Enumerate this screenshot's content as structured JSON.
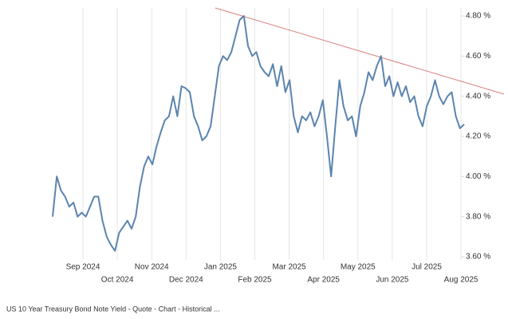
{
  "chart_data": {
    "type": "line",
    "caption": "US 10 Year Treasury Bond Note Yield - Quote - Chart - Historical ...",
    "month_labels": [
      "Sep 2024",
      "Oct 2024",
      "Nov 2024",
      "Dec 2024",
      "Jan 2025",
      "Feb 2025",
      "Mar 2025",
      "Apr 2025",
      "May 2025",
      "Jun 2025",
      "Jul 2025",
      "Aug 2025"
    ],
    "series": [
      {
        "color": "#5b84ae",
        "values": [
          3.8,
          4.0,
          3.93,
          3.9,
          3.85,
          3.87,
          3.8,
          3.82,
          3.8,
          3.85,
          3.9,
          3.9,
          3.78,
          3.7,
          3.66,
          3.63,
          3.72,
          3.75,
          3.78,
          3.74,
          3.8,
          3.95,
          4.05,
          4.1,
          4.06,
          4.15,
          4.22,
          4.28,
          4.3,
          4.4,
          4.3,
          4.45,
          4.44,
          4.42,
          4.3,
          4.25,
          4.18,
          4.2,
          4.25,
          4.4,
          4.55,
          4.6,
          4.58,
          4.62,
          4.7,
          4.78,
          4.8,
          4.65,
          4.6,
          4.62,
          4.55,
          4.52,
          4.5,
          4.56,
          4.45,
          4.55,
          4.42,
          4.48,
          4.3,
          4.22,
          4.3,
          4.28,
          4.32,
          4.25,
          4.3,
          4.38,
          4.2,
          4.0,
          4.25,
          4.48,
          4.35,
          4.28,
          4.3,
          4.2,
          4.35,
          4.42,
          4.52,
          4.48,
          4.55,
          4.6,
          4.45,
          4.5,
          4.4,
          4.47,
          4.4,
          4.45,
          4.37,
          4.4,
          4.3,
          4.25,
          4.35,
          4.4,
          4.48,
          4.4,
          4.36,
          4.4,
          4.42,
          4.3,
          4.24,
          4.26
        ]
      }
    ],
    "ylim": [
      3.6,
      4.8
    ],
    "yticks": [
      {
        "value": 3.6,
        "label": "3.60 %"
      },
      {
        "value": 3.8,
        "label": "3.80 %"
      },
      {
        "value": 4.0,
        "label": "4.00 %"
      },
      {
        "value": 4.2,
        "label": "4.20 %"
      },
      {
        "value": 4.4,
        "label": "4.40 %"
      },
      {
        "value": 4.6,
        "label": "4.60 %"
      },
      {
        "value": 4.8,
        "label": "4.80 %"
      }
    ]
  }
}
